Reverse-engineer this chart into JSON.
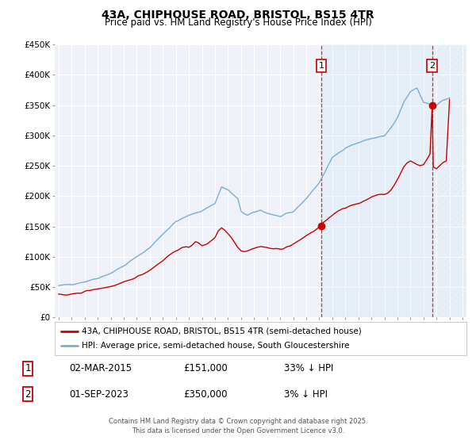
{
  "title": "43A, CHIPHOUSE ROAD, BRISTOL, BS15 4TR",
  "subtitle": "Price paid vs. HM Land Registry's House Price Index (HPI)",
  "background_color": "#ffffff",
  "plot_bg_color": "#eef2f8",
  "grid_color": "#ffffff",
  "legend_entries": [
    "43A, CHIPHOUSE ROAD, BRISTOL, BS15 4TR (semi-detached house)",
    "HPI: Average price, semi-detached house, South Gloucestershire"
  ],
  "sale_color": "#cc0000",
  "hpi_color": "#7aadd4",
  "annotation1_date": "02-MAR-2015",
  "annotation1_price": "£151,000",
  "annotation1_hpi": "33% ↓ HPI",
  "annotation1_year": 2015.17,
  "annotation1_value": 151000,
  "annotation2_date": "01-SEP-2023",
  "annotation2_price": "£350,000",
  "annotation2_hpi": "3% ↓ HPI",
  "annotation2_year": 2023.67,
  "annotation2_value": 350000,
  "footer": "Contains HM Land Registry data © Crown copyright and database right 2025.\nThis data is licensed under the Open Government Licence v3.0.",
  "ylim": [
    0,
    450000
  ],
  "xlim": [
    1994.7,
    2026.3
  ],
  "yticks": [
    0,
    50000,
    100000,
    150000,
    200000,
    250000,
    300000,
    350000,
    400000,
    450000
  ],
  "ytick_labels": [
    "£0",
    "£50K",
    "£100K",
    "£150K",
    "£200K",
    "£250K",
    "£300K",
    "£350K",
    "£400K",
    "£450K"
  ],
  "xticks": [
    1995,
    1996,
    1997,
    1998,
    1999,
    2000,
    2001,
    2002,
    2003,
    2004,
    2005,
    2006,
    2007,
    2008,
    2009,
    2010,
    2011,
    2012,
    2013,
    2014,
    2015,
    2016,
    2017,
    2018,
    2019,
    2020,
    2021,
    2022,
    2023,
    2024,
    2025,
    2026
  ]
}
